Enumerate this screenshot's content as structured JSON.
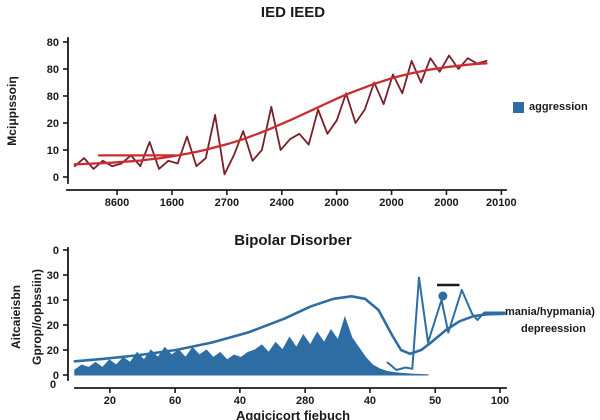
{
  "figure": {
    "background": "#ffffff",
    "stray_origin_label": "0"
  },
  "chart_data": [
    {
      "type": "line",
      "title": "IED IEED",
      "ylabel": "Mciμpıssoiη",
      "xlabel": "",
      "grid": false,
      "legend": [
        {
          "label": "aggression",
          "color": "#2e6da4"
        }
      ],
      "legend_position": "right",
      "xlim": [
        0,
        100
      ],
      "ylim": [
        0,
        52
      ],
      "xticks": {
        "x": [
          10.9,
          23.1,
          35.3,
          47.5,
          59.7,
          71.9,
          84.1,
          96.3
        ],
        "labels": [
          "8600",
          "1600",
          "2700",
          "2400",
          "2000",
          "2000",
          "2000",
          "20100"
        ]
      },
      "yticks": {
        "values": [
          0,
          10,
          20,
          30,
          40,
          50
        ],
        "labels": [
          "0",
          "10",
          "20",
          "80",
          "80",
          "80"
        ]
      },
      "series": [
        {
          "name": "aggression-raw-line",
          "type": "line",
          "color": "#7a2028",
          "width": 1.8,
          "x0": 1.5,
          "x1": 93,
          "values": [
            4,
            7,
            3,
            6,
            4,
            5,
            8,
            4,
            13,
            3,
            6,
            5,
            15,
            4,
            7,
            23,
            1,
            8,
            17,
            6,
            10,
            26,
            10,
            14,
            16,
            12,
            25,
            16,
            21,
            31,
            20,
            25,
            35,
            27,
            38,
            31,
            43,
            35,
            44,
            39,
            45,
            40,
            44,
            42,
            43
          ]
        },
        {
          "name": "sigmoid-fit-line",
          "type": "line",
          "color": "#cc2b2f",
          "width": 2.3,
          "x0": 1.5,
          "x1": 93,
          "values": [
            4.7,
            4.8,
            5,
            5.1,
            5.3,
            5.6,
            5.8,
            6.1,
            6.5,
            6.9,
            7.4,
            8,
            8.6,
            9.3,
            10.1,
            11,
            11.9,
            12.9,
            14,
            15.3,
            16.6,
            18,
            19.5,
            21,
            22.6,
            24.2,
            25.8,
            27.4,
            29,
            30.5,
            31.9,
            33.2,
            34.5,
            35.6,
            36.7,
            37.6,
            38.4,
            39.1,
            39.8,
            40.3,
            40.8,
            41.2,
            41.6,
            41.9,
            42.1
          ]
        }
      ],
      "annotations": [
        {
          "type": "segment",
          "x0": 6.7,
          "x1": 23.8,
          "y": 8,
          "color": "#cc2b2f",
          "width": 2.3
        }
      ]
    },
    {
      "type": "area",
      "title": "Bipolar Disorber",
      "xlabel": "Aggicicort fiebuch",
      "ylabel_line1": "Aitcaieisbn",
      "ylabel_line2": "Gprop//opbssiin)",
      "right_labels": {
        "line1": "mania/hypmania)",
        "line2": "depreession"
      },
      "grid": false,
      "xlim": [
        0,
        100
      ],
      "ylim": [
        0,
        52
      ],
      "xticks": {
        "x": [
          9.3,
          23.8,
          38.2,
          52.7,
          67.1,
          81.6,
          96
        ],
        "labels": [
          "20",
          "60",
          "40",
          "280",
          "40",
          "50",
          "100"
        ]
      },
      "yticks": {
        "values": [
          0,
          10,
          20,
          30,
          40,
          50
        ],
        "labels": [
          "0",
          "20",
          "20",
          "10",
          "30",
          "0"
        ]
      },
      "series": [
        {
          "name": "depression-area",
          "type": "area",
          "color": "#2e6da4",
          "x0": 1.5,
          "x1": 80,
          "values": [
            2,
            4,
            3,
            5,
            3,
            6,
            4,
            7,
            5,
            9,
            6,
            10,
            7,
            11,
            8,
            10,
            7,
            11,
            8,
            10,
            7,
            9,
            6,
            8,
            7,
            9,
            10,
            12,
            9,
            13,
            10,
            15,
            11,
            16,
            12,
            17,
            13,
            18,
            14,
            23,
            15,
            11,
            7,
            4,
            2.5,
            1.5,
            1,
            0.7,
            0.5,
            0.3,
            0.2,
            0.1
          ]
        },
        {
          "name": "mania-spiky-line",
          "type": "line",
          "color": "#2e6da4",
          "width": 2,
          "points": [
            [
              71,
              5
            ],
            [
              73,
              2
            ],
            [
              75,
              3
            ],
            [
              76.5,
              2.5
            ],
            [
              78,
              39
            ],
            [
              80,
              13
            ],
            [
              83,
              30
            ],
            [
              84.5,
              17
            ],
            [
              87.5,
              34
            ],
            [
              89.8,
              24.5
            ],
            [
              91,
              22
            ],
            [
              92.5,
              25
            ],
            [
              97,
              25
            ]
          ]
        },
        {
          "name": "mania-smooth-line",
          "type": "line",
          "color": "#2e6da4",
          "width": 2.6,
          "points": [
            [
              1.5,
              5.5
            ],
            [
              8,
              6.5
            ],
            [
              16,
              8
            ],
            [
              24,
              10
            ],
            [
              32,
              13
            ],
            [
              40,
              17
            ],
            [
              48,
              22.5
            ],
            [
              54,
              27.5
            ],
            [
              59,
              30.5
            ],
            [
              63,
              31.5
            ],
            [
              66,
              30.5
            ],
            [
              69,
              26
            ],
            [
              72,
              16
            ],
            [
              74,
              10
            ],
            [
              76,
              8.5
            ],
            [
              78.5,
              10
            ],
            [
              81,
              13.5
            ],
            [
              84,
              18
            ],
            [
              87,
              21.5
            ],
            [
              90,
              23.5
            ],
            [
              93,
              24.3
            ],
            [
              97,
              24.5
            ]
          ]
        }
      ],
      "annotations": [
        {
          "type": "segment",
          "x0": 82,
          "x1": 87,
          "y": 36,
          "color": "#1a1a1a",
          "width": 2.6
        },
        {
          "type": "dot",
          "x": 83.3,
          "y": 31.6,
          "r": 4.5,
          "color": "#2e6da4"
        }
      ]
    }
  ]
}
